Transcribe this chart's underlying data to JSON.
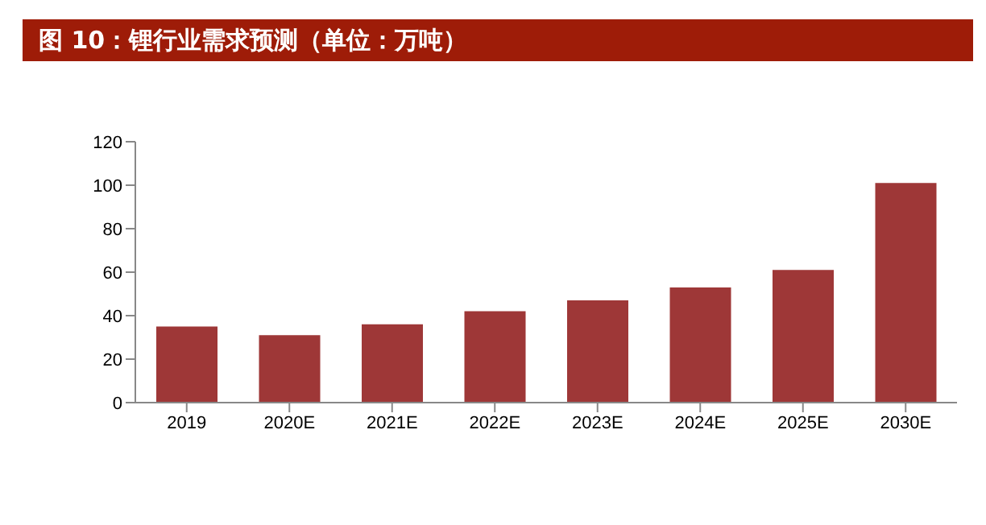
{
  "chart_data": {
    "type": "bar",
    "title": "图 10：锂行业需求预测（单位：万吨）",
    "categories": [
      "2019",
      "2020E",
      "2021E",
      "2022E",
      "2023E",
      "2024E",
      "2025E",
      "2030E"
    ],
    "values": [
      35,
      31,
      36,
      42,
      47,
      53,
      61,
      101
    ],
    "color": "#9e3737",
    "ylim": [
      0,
      120
    ],
    "yticks": [
      0,
      20,
      40,
      60,
      80,
      100,
      120
    ]
  }
}
